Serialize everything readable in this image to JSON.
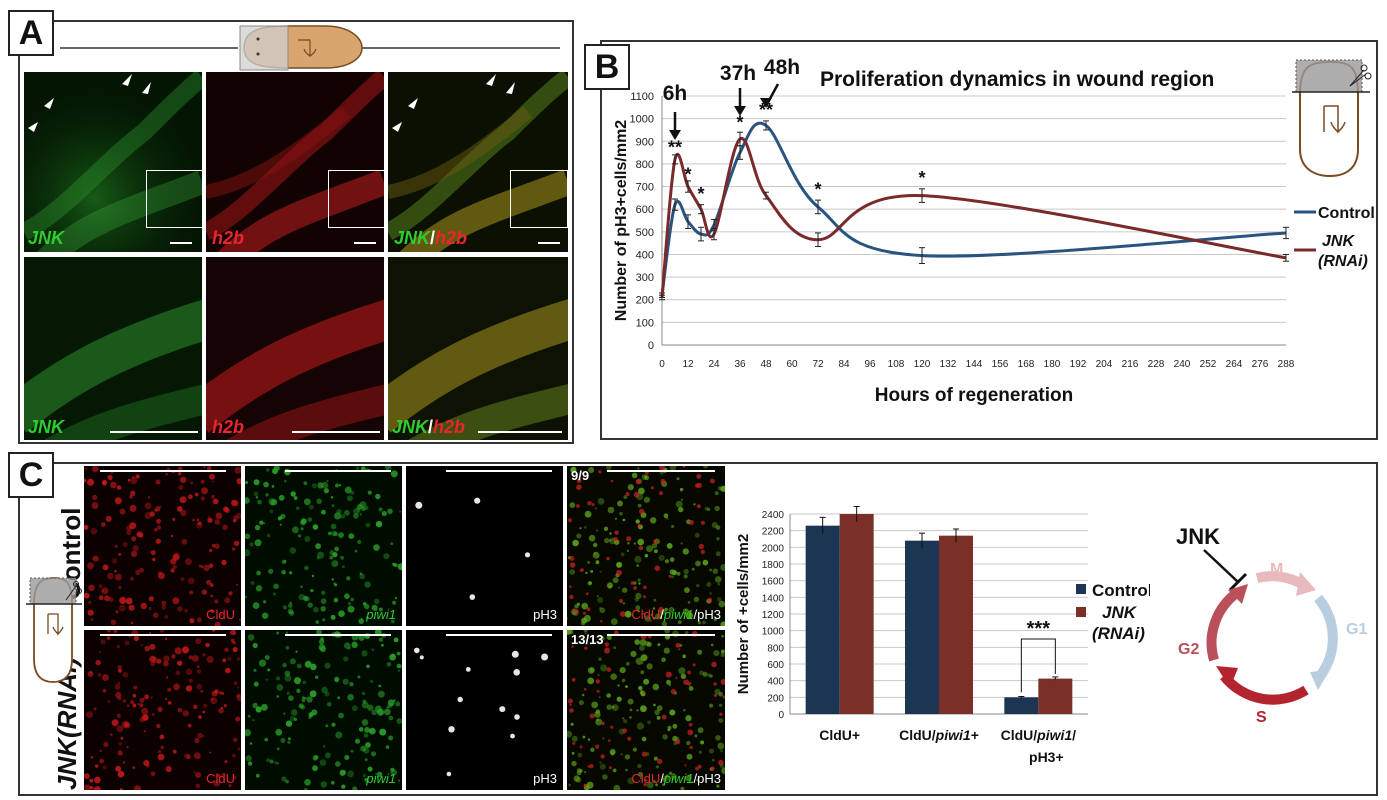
{
  "panels": {
    "a": "A",
    "b": "B",
    "c": "C"
  },
  "panel_a": {
    "labels": {
      "jnk": "JNK",
      "h2b": "h2b",
      "slash": "/"
    }
  },
  "panel_c": {
    "row_labels": {
      "control": "Control",
      "rnai": "JNK(RNAi)"
    },
    "image_labels": {
      "cldu": "CldU",
      "piwi1": "piwi1",
      "ph3": "pH3",
      "slash": "/"
    },
    "counts": {
      "control": "9/9",
      "rnai": "13/13"
    },
    "cycle": {
      "regulator": "JNK",
      "phases": [
        "M",
        "G1",
        "S",
        "G2"
      ]
    }
  },
  "colors": {
    "control": "#2a5480",
    "rnai": "#7a2a2a",
    "bar_control": "#1c3553",
    "bar_rnai": "#7a3029",
    "cycle_m": "#e8b9bd",
    "cycle_g1": "#b8cde0",
    "cycle_s": "#b4242f",
    "cycle_g2": "#b9505a",
    "green": "#2ecc2e",
    "red": "#e8262b"
  },
  "chart_data": [
    {
      "type": "line",
      "title": "Proliferation dynamics in wound region",
      "xlabel": "Hours of regeneration",
      "ylabel": "Number of pH3+cells/mm2",
      "xlim": [
        0,
        288
      ],
      "ylim": [
        0,
        1100
      ],
      "xticks": [
        0,
        12,
        24,
        36,
        48,
        60,
        72,
        84,
        96,
        108,
        120,
        132,
        144,
        156,
        168,
        180,
        192,
        204,
        216,
        228,
        240,
        252,
        264,
        276,
        288
      ],
      "yticks": [
        0,
        100,
        200,
        300,
        400,
        500,
        600,
        700,
        800,
        900,
        1000,
        1100
      ],
      "grid": true,
      "legend_position": "right",
      "series": [
        {
          "name": "Control",
          "x": [
            0,
            6,
            12,
            18,
            24,
            36,
            48,
            72,
            120,
            288
          ],
          "y": [
            220,
            620,
            545,
            490,
            530,
            850,
            970,
            610,
            395,
            495
          ],
          "err": [
            10,
            25,
            30,
            30,
            25,
            30,
            20,
            30,
            35,
            25
          ]
        },
        {
          "name": "JNK (RNAi)",
          "x": [
            0,
            6,
            12,
            18,
            24,
            36,
            48,
            72,
            120,
            288
          ],
          "y": [
            210,
            820,
            700,
            600,
            490,
            910,
            660,
            465,
            660,
            385
          ],
          "err": [
            10,
            20,
            25,
            20,
            25,
            30,
            15,
            30,
            30,
            15
          ]
        }
      ],
      "timepoint_annotations": [
        "6h",
        "37h",
        "48h"
      ],
      "significance": [
        {
          "x": 6,
          "y": 820,
          "label": "**"
        },
        {
          "x": 12,
          "y": 700,
          "label": "*"
        },
        {
          "x": 18,
          "y": 615,
          "label": "*"
        },
        {
          "x": 36,
          "y": 930,
          "label": "*"
        },
        {
          "x": 48,
          "y": 985,
          "label": "**"
        },
        {
          "x": 72,
          "y": 635,
          "label": "*"
        },
        {
          "x": 120,
          "y": 685,
          "label": "*"
        }
      ]
    },
    {
      "type": "bar",
      "ylabel": "Number of +cells/mm2",
      "ylim": [
        0,
        2400
      ],
      "yticks": [
        0,
        200,
        400,
        600,
        800,
        1000,
        1200,
        1400,
        1600,
        1800,
        2000,
        2200,
        2400
      ],
      "grid": true,
      "legend_position": "right",
      "categories": [
        "CldU+",
        "CldU/piwi1+",
        "CldU/piwi1/ pH3+"
      ],
      "series": [
        {
          "name": "Control",
          "values": [
            2260,
            2080,
            200
          ],
          "err": [
            100,
            90,
            10
          ]
        },
        {
          "name": "JNK (RNAi)",
          "values": [
            2400,
            2140,
            425
          ],
          "err": [
            90,
            80,
            20
          ]
        }
      ],
      "significance": [
        {
          "category_index": 2,
          "label": "***"
        }
      ]
    }
  ]
}
